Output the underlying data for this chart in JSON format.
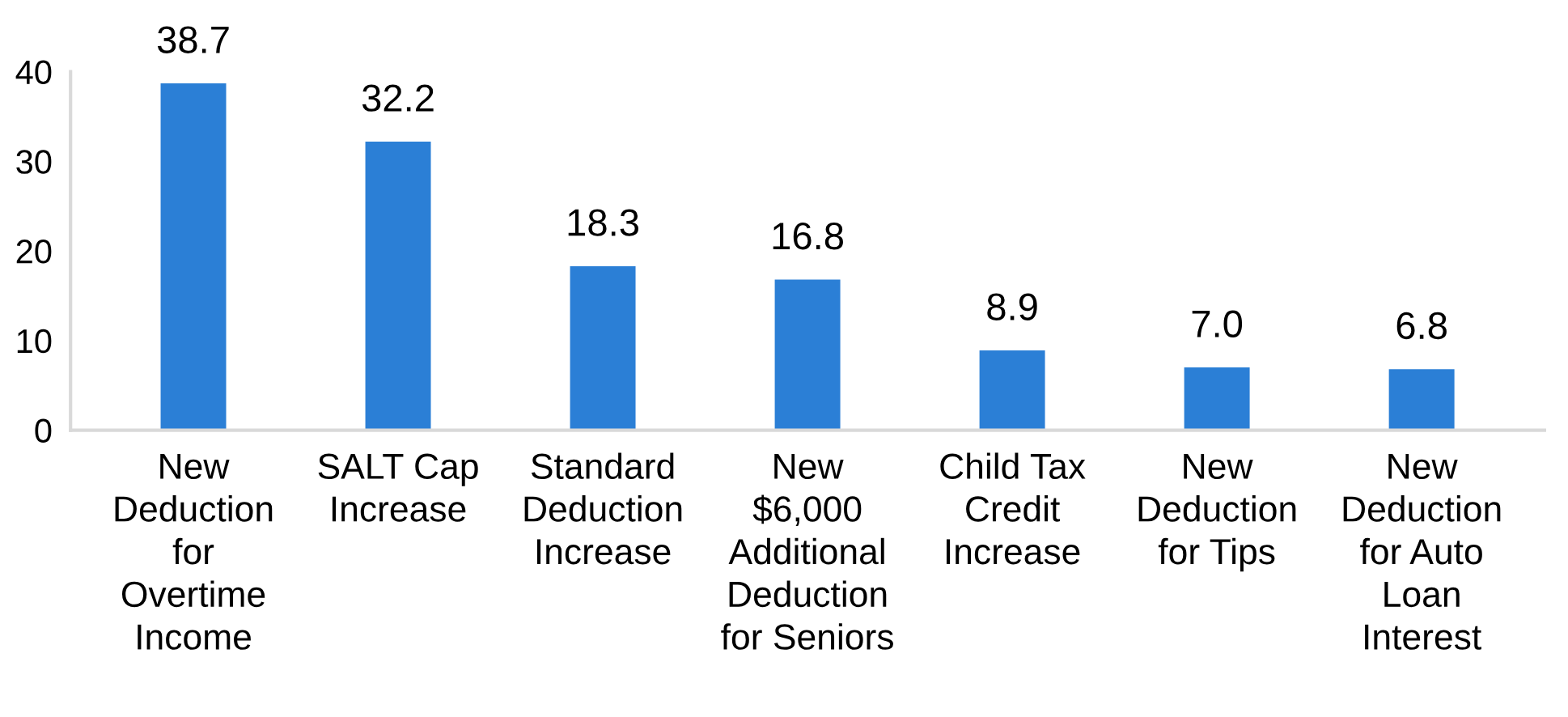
{
  "chart_data": {
    "type": "bar",
    "categories": [
      "New\nDeduction\nfor\nOvertime\nIncome",
      "SALT Cap\nIncrease",
      "Standard\nDeduction\nIncrease",
      "New\n$6,000\nAdditional\nDeduction\nfor Seniors",
      "Child Tax\nCredit\nIncrease",
      "New\nDeduction\nfor Tips",
      "New\nDeduction\nfor Auto\nLoan\nInterest"
    ],
    "values": [
      38.7,
      32.2,
      18.3,
      16.8,
      8.9,
      7.0,
      6.8
    ],
    "value_labels": [
      "38.7",
      "32.2",
      "18.3",
      "16.8",
      "8.9",
      "7.0",
      "6.8"
    ],
    "color": "#2b7fd6",
    "ylim": [
      0,
      40
    ],
    "yticks": [
      0,
      10,
      20,
      30,
      40
    ],
    "grid": false,
    "legend": false
  }
}
